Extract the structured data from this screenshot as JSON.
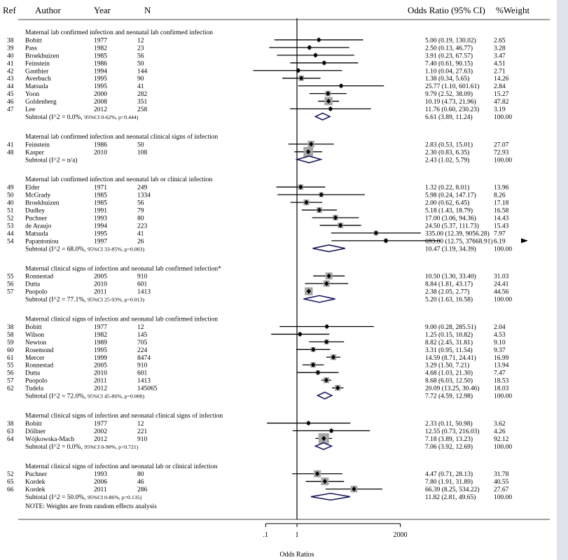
{
  "header": {
    "ref": "Ref",
    "author": "Author",
    "year": "Year",
    "n": "N",
    "or": "Odds Ratio (95% CI)",
    "weight": "%Weight"
  },
  "axis": {
    "ticks": [
      ".1",
      "1",
      "2000"
    ],
    "tick_values": [
      0.1,
      1,
      2000
    ],
    "label": "Odds Ratios"
  },
  "note": "NOTE: Weights are from random effects analysis",
  "colors": {
    "marker": "#000000",
    "box": "#a6a6a6",
    "diamond": "#1a1a5e",
    "bg": "#ffffff",
    "page": "#dfe3ea"
  },
  "chart_data": {
    "type": "forest",
    "scale": "log",
    "xlim": [
      0.04,
      37668.91
    ],
    "null_line": 1,
    "groups": [
      {
        "title": "Maternal lab confirmed infection and neonatal lab confirmed infection",
        "studies": [
          {
            "ref": "38",
            "author": "Bobitt",
            "year": "1977",
            "n": "12",
            "or": 5.0,
            "lo": 0.19,
            "hi": 130.02,
            "or_text": "5.00 (0.19, 130.02)",
            "weight": "2.65"
          },
          {
            "ref": "39",
            "author": "Pass",
            "year": "1982",
            "n": "23",
            "or": 2.5,
            "lo": 0.13,
            "hi": 46.77,
            "or_text": "2.50 (0.13, 46.77)",
            "weight": "3.28"
          },
          {
            "ref": "40",
            "author": "Broekhuizen",
            "year": "1985",
            "n": "56",
            "or": 3.91,
            "lo": 0.23,
            "hi": 67.57,
            "or_text": "3.91 (0.23, 67.57)",
            "weight": "3.47"
          },
          {
            "ref": "41",
            "author": "Feinstein",
            "year": "1986",
            "n": "50",
            "or": 7.4,
            "lo": 0.61,
            "hi": 90.15,
            "or_text": "7.40 (0.61, 90.15)",
            "weight": "4.51"
          },
          {
            "ref": "42",
            "author": "Gauthier",
            "year": "1994",
            "n": "144",
            "or": 1.1,
            "lo": 0.04,
            "hi": 27.63,
            "or_text": "1.10 (0.04, 27.63)",
            "weight": "2.71"
          },
          {
            "ref": "43",
            "author": "Averbuch",
            "year": "1995",
            "n": "90",
            "or": 1.38,
            "lo": 0.34,
            "hi": 5.65,
            "or_text": "1.38 (0.34, 5.65)",
            "weight": "14.26"
          },
          {
            "ref": "44",
            "author": "Matsuda",
            "year": "1995",
            "n": "41",
            "or": 25.77,
            "lo": 1.1,
            "hi": 601.61,
            "or_text": "25.77 (1.10, 601.61)",
            "weight": "2.84"
          },
          {
            "ref": "45",
            "author": "Yoon",
            "year": "2000",
            "n": "282",
            "or": 9.79,
            "lo": 2.52,
            "hi": 38.09,
            "or_text": "9.79 (2.52, 38.09)",
            "weight": "15.27"
          },
          {
            "ref": "46",
            "author": "Goldenberg",
            "year": "2008",
            "n": "351",
            "or": 10.19,
            "lo": 4.73,
            "hi": 21.96,
            "or_text": "10.19 (4.73, 21.96)",
            "weight": "47.82"
          },
          {
            "ref": "47",
            "author": "Lee",
            "year": "2012",
            "n": "258",
            "or": 11.76,
            "lo": 0.6,
            "hi": 230.23,
            "or_text": "11.76 (0.60, 230.23)",
            "weight": "3.19"
          }
        ],
        "subtotal": {
          "label": "Subtotal (I^2 = 0.0%, ",
          "ci_small": "95%CI 0-62%, p=0.444)",
          "or": 6.61,
          "lo": 3.89,
          "hi": 11.24,
          "or_text": "6.61 (3.89, 11.24)",
          "weight": "100.00"
        }
      },
      {
        "title": "Maternal lab confirmed infection and neonatal clinical signs of infection",
        "studies": [
          {
            "ref": "41",
            "author": "Feinstein",
            "year": "1986",
            "n": "50",
            "or": 2.83,
            "lo": 0.53,
            "hi": 15.01,
            "or_text": "2.83 (0.53, 15.01)",
            "weight": "27.07"
          },
          {
            "ref": "48",
            "author": "Kasper",
            "year": "2010",
            "n": "108",
            "or": 2.3,
            "lo": 0.83,
            "hi": 6.35,
            "or_text": "2.30 (0.83, 6.35)",
            "weight": "72.93"
          }
        ],
        "subtotal": {
          "label": "Subtotal (I^2 = n/a)",
          "ci_small": "",
          "or": 2.43,
          "lo": 1.02,
          "hi": 5.79,
          "or_text": "2.43 (1.02, 5.79)",
          "weight": "100.00"
        }
      },
      {
        "title": "Maternal lab confirmed infection and neonatal lab or clinical infection",
        "studies": [
          {
            "ref": "49",
            "author": "Elder",
            "year": "1971",
            "n": "249",
            "or": 1.32,
            "lo": 0.22,
            "hi": 8.01,
            "or_text": "1.32 (0.22, 8.01)",
            "weight": "13.96"
          },
          {
            "ref": "50",
            "author": "McGrady",
            "year": "1985",
            "n": "1334",
            "or": 5.98,
            "lo": 0.24,
            "hi": 147.17,
            "or_text": "5.98 (0.24, 147.17)",
            "weight": "8.26"
          },
          {
            "ref": "40",
            "author": "Broekhuizen",
            "year": "1985",
            "n": "56",
            "or": 2.0,
            "lo": 0.62,
            "hi": 6.45,
            "or_text": "2.00 (0.62, 6.45)",
            "weight": "17.18"
          },
          {
            "ref": "51",
            "author": "Dudley",
            "year": "1991",
            "n": "79",
            "or": 5.18,
            "lo": 1.43,
            "hi": 18.79,
            "or_text": "5.18 (1.43, 18.79)",
            "weight": "16.58"
          },
          {
            "ref": "52",
            "author": "Puchner",
            "year": "1993",
            "n": "80",
            "or": 17.0,
            "lo": 3.06,
            "hi": 94.36,
            "or_text": "17.00 (3.06, 94.36)",
            "weight": "14.43"
          },
          {
            "ref": "53",
            "author": "de Araujo",
            "year": "1994",
            "n": "223",
            "or": 24.5,
            "lo": 5.37,
            "hi": 111.73,
            "or_text": "24.50 (5.37, 111.73)",
            "weight": "15.43"
          },
          {
            "ref": "44",
            "author": "Matsuda",
            "year": "1995",
            "n": "41",
            "or": 335.0,
            "lo": 12.39,
            "hi": 9056.28,
            "or_text": "335.00 (12.39, 9056.28)",
            "weight": "7.97"
          },
          {
            "ref": "54",
            "author": "Papantoniou",
            "year": "1997",
            "n": "26",
            "or": 693.0,
            "lo": 12.75,
            "hi": 37668.91,
            "or_text": "693.00 (12.75, 37668.91)",
            "weight": "6.19",
            "arrow": true
          }
        ],
        "subtotal": {
          "label": "Subtotal (I^2 = 68.0%, ",
          "ci_small": "95%CI 33-85%, p=0.003)",
          "or": 10.47,
          "lo": 3.19,
          "hi": 34.39,
          "or_text": "10.47 (3.19, 34.39)",
          "weight": "100.00"
        }
      },
      {
        "title": "Maternal clinical signs of infection and neonatal lab confirmed infection*",
        "studies": [
          {
            "ref": "55",
            "author": "Ronnestad",
            "year": "2005",
            "n": "910",
            "or": 10.5,
            "lo": 3.3,
            "hi": 33.4,
            "or_text": "10.50 (3.30, 33.40)",
            "weight": "31.03"
          },
          {
            "ref": "56",
            "author": "Dutta",
            "year": "2010",
            "n": "601",
            "or": 8.84,
            "lo": 1.81,
            "hi": 43.17,
            "or_text": "8.84 (1.81, 43.17)",
            "weight": "24.41"
          },
          {
            "ref": "57",
            "author": "Puopolo",
            "year": "2011",
            "n": "1413",
            "or": 2.38,
            "lo": 2.05,
            "hi": 2.77,
            "or_text": "2.38 (2.05, 2.77)",
            "weight": "44.56"
          }
        ],
        "subtotal": {
          "label": "Subtotal (I^2 = 77.1%, ",
          "ci_small": "95%CI 25-93%, p=0.013)",
          "or": 5.2,
          "lo": 1.63,
          "hi": 16.58,
          "or_text": "5.20 (1.63, 16.58)",
          "weight": "100.00"
        }
      },
      {
        "title": "Maternal clinical signs of infection and neonatal lab confirmed infection",
        "studies": [
          {
            "ref": "38",
            "author": "Bobitt",
            "year": "1977",
            "n": "12",
            "or": 9.0,
            "lo": 0.28,
            "hi": 285.51,
            "or_text": "9.00 (0.28, 285.51)",
            "weight": "2.04"
          },
          {
            "ref": "58",
            "author": "Wilson",
            "year": "1982",
            "n": "145",
            "or": 1.25,
            "lo": 0.15,
            "hi": 10.82,
            "or_text": "1.25 (0.15, 10.82)",
            "weight": "4.53"
          },
          {
            "ref": "59",
            "author": "Newton",
            "year": "1989",
            "n": "705",
            "or": 8.82,
            "lo": 2.45,
            "hi": 31.81,
            "or_text": "8.82 (2.45, 31.81)",
            "weight": "9.10"
          },
          {
            "ref": "60",
            "author": "Rosemond",
            "year": "1995",
            "n": "224",
            "or": 3.31,
            "lo": 0.95,
            "hi": 11.54,
            "or_text": "3.31 (0.95, 11.54)",
            "weight": "9.37"
          },
          {
            "ref": "61",
            "author": "Mercer",
            "year": "1999",
            "n": "8474",
            "or": 14.59,
            "lo": 8.71,
            "hi": 24.41,
            "or_text": "14.59 (8.71, 24.41)",
            "weight": "16.99"
          },
          {
            "ref": "55",
            "author": "Ronnestad",
            "year": "2005",
            "n": "910",
            "or": 3.29,
            "lo": 1.5,
            "hi": 7.21,
            "or_text": "3.29 (1.50, 7.21)",
            "weight": "13.94"
          },
          {
            "ref": "56",
            "author": "Dutta",
            "year": "2010",
            "n": "601",
            "or": 4.68,
            "lo": 1.03,
            "hi": 21.3,
            "or_text": "4.68 (1.03, 21.30)",
            "weight": "7.47"
          },
          {
            "ref": "57",
            "author": "Puopolo",
            "year": "2011",
            "n": "1413",
            "or": 8.68,
            "lo": 6.03,
            "hi": 12.5,
            "or_text": "8.68 (6.03, 12.50)",
            "weight": "18.53"
          },
          {
            "ref": "62",
            "author": "Tudela",
            "year": "2012",
            "n": "145065",
            "or": 20.09,
            "lo": 13.25,
            "hi": 30.46,
            "or_text": "20.09 (13.25, 30.46)",
            "weight": "18.03"
          }
        ],
        "subtotal": {
          "label": "Subtotal (I^2 = 72.0%, ",
          "ci_small": "95%CI 45-86%, p=0.000)",
          "or": 7.72,
          "lo": 4.59,
          "hi": 12.98,
          "or_text": "7.72 (4.59, 12.98)",
          "weight": "100.00"
        }
      },
      {
        "title": "Maternal clinical signs of infection and neonatal clinical signs of infection",
        "studies": [
          {
            "ref": "38",
            "author": "Bobitt",
            "year": "1977",
            "n": "12",
            "or": 2.33,
            "lo": 0.11,
            "hi": 50.98,
            "or_text": "2.33 (0.11, 50.98)",
            "weight": "3.62"
          },
          {
            "ref": "63",
            "author": "Döllner",
            "year": "2002",
            "n": "221",
            "or": 12.55,
            "lo": 0.73,
            "hi": 216.03,
            "or_text": "12.55 (0.73, 216.03)",
            "weight": "4.26"
          },
          {
            "ref": "64",
            "author": "Wójkowska-Mach",
            "year": "2012",
            "n": "910",
            "or": 7.18,
            "lo": 3.89,
            "hi": 13.23,
            "or_text": "7.18 (3.89, 13.23)",
            "weight": "92.12"
          }
        ],
        "subtotal": {
          "label": "Subtotal (I^2 = 0.0%, ",
          "ci_small": "95%CI 0-90%, p=0.721)",
          "or": 7.06,
          "lo": 3.92,
          "hi": 12.69,
          "or_text": "7.06 (3.92, 12.69)",
          "weight": "100.00"
        }
      },
      {
        "title": "Maternal clinical signs of infection and neonatal lab or clinical infection",
        "studies": [
          {
            "ref": "52",
            "author": "Puchner",
            "year": "1993",
            "n": "80",
            "or": 4.47,
            "lo": 0.71,
            "hi": 28.13,
            "or_text": "4.47 (0.71, 28.13)",
            "weight": "31.78"
          },
          {
            "ref": "65",
            "author": "Kordek",
            "year": "2006",
            "n": "46",
            "or": 7.8,
            "lo": 1.91,
            "hi": 31.89,
            "or_text": "7.80 (1.91, 31.89)",
            "weight": "40.55"
          },
          {
            "ref": "66",
            "author": "Kordek",
            "year": "2011",
            "n": "286",
            "or": 66.39,
            "lo": 8.25,
            "hi": 534.22,
            "or_text": "66.39 (8.25, 534.22)",
            "weight": "27.67"
          }
        ],
        "subtotal": {
          "label": "Subtotal (I^2 = 50.0%, ",
          "ci_small": "95%CI 0-86%, p=0.135)",
          "or": 11.82,
          "lo": 2.81,
          "hi": 49.65,
          "or_text": "11.82 (2.81, 49.65)",
          "weight": "100.00"
        }
      }
    ]
  }
}
